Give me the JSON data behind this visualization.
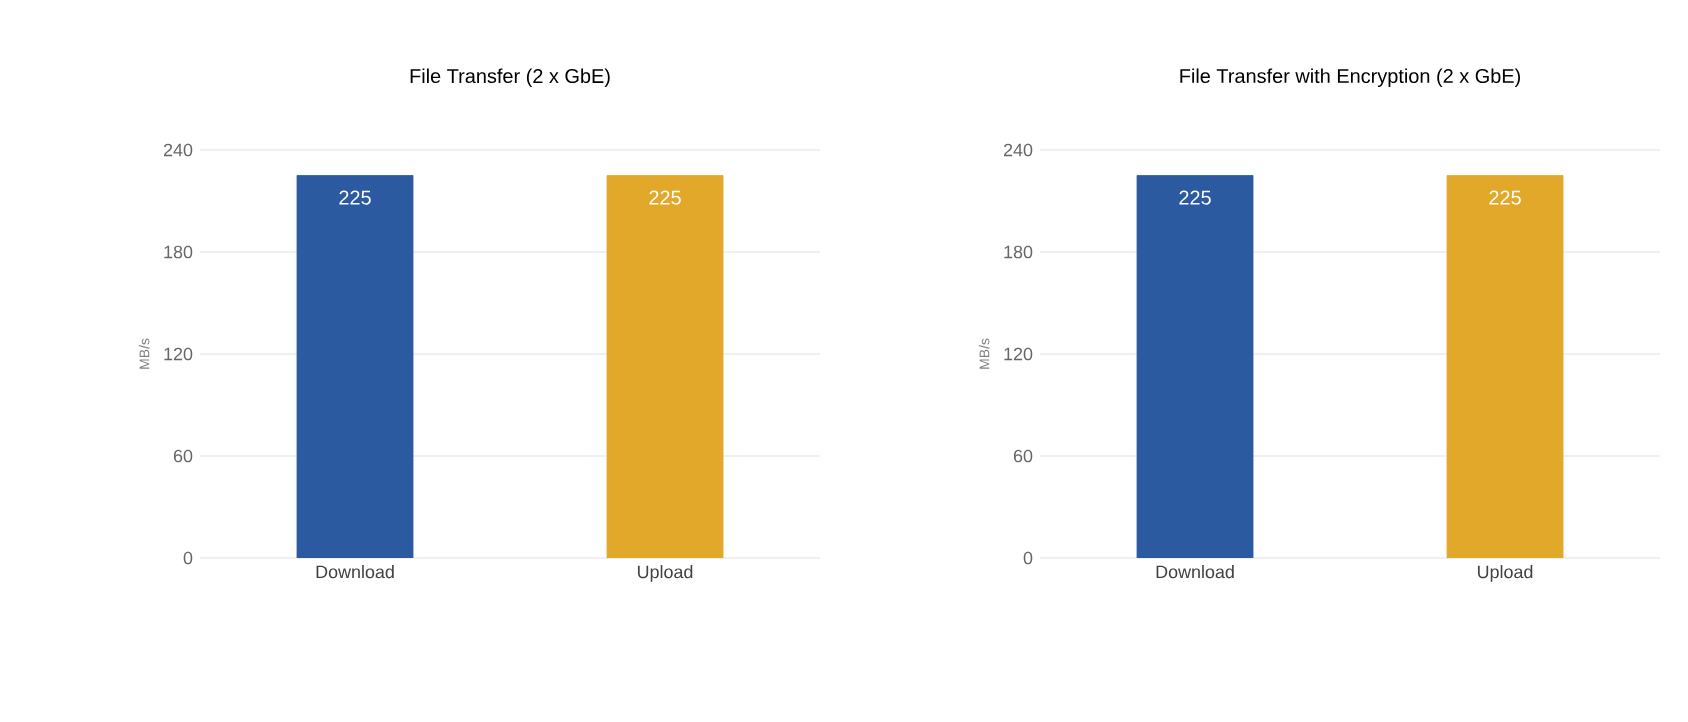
{
  "chart_data": [
    {
      "type": "bar",
      "title": "File Transfer (2 x GbE)",
      "ylabel": "MB/s",
      "categories": [
        "Download",
        "Upload"
      ],
      "values": [
        225,
        225
      ],
      "colors": [
        "#2b5aa0",
        "#e2a82a"
      ],
      "ylim": [
        0,
        240
      ],
      "yticks": [
        0,
        60,
        120,
        180,
        240
      ],
      "grid": "y",
      "data_labels": true
    },
    {
      "type": "bar",
      "title": "File Transfer with Encryption (2 x GbE)",
      "ylabel": "MB/s",
      "categories": [
        "Download",
        "Upload"
      ],
      "values": [
        225,
        225
      ],
      "colors": [
        "#2b5aa0",
        "#e2a82a"
      ],
      "ylim": [
        0,
        240
      ],
      "yticks": [
        0,
        60,
        120,
        180,
        240
      ],
      "grid": "y",
      "data_labels": true
    }
  ]
}
